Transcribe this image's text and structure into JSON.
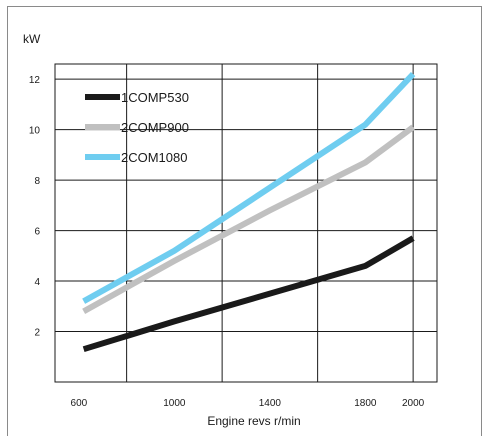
{
  "chart_data": {
    "type": "line",
    "title": "",
    "ylabel": "kW",
    "xlabel": "Engine revs r/min",
    "x": [
      600,
      1000,
      1400,
      1800,
      2000
    ],
    "xticks": [
      600,
      1000,
      1400,
      1800,
      2000
    ],
    "yticks": [
      2,
      4,
      6,
      8,
      10,
      12
    ],
    "xlim": [
      600,
      2000
    ],
    "ylim": [
      0,
      12
    ],
    "grid": true,
    "legend_position": "top-left",
    "series": [
      {
        "name": "1COMP530",
        "color": "#1a1a1a",
        "values": [
          1.3,
          2.4,
          3.5,
          4.6,
          5.7
        ],
        "x": [
          620,
          1000,
          1400,
          1800,
          2000
        ]
      },
      {
        "name": "2COMP900",
        "color": "#c0c0c0",
        "values": [
          2.8,
          4.8,
          6.8,
          8.7,
          10.1
        ],
        "x": [
          620,
          1000,
          1400,
          1800,
          2000
        ]
      },
      {
        "name": "2COM1080",
        "color": "#6fcdf0",
        "values": [
          3.2,
          5.2,
          7.7,
          10.2,
          12.2
        ],
        "x": [
          620,
          1000,
          1400,
          1800,
          2000
        ]
      }
    ]
  }
}
